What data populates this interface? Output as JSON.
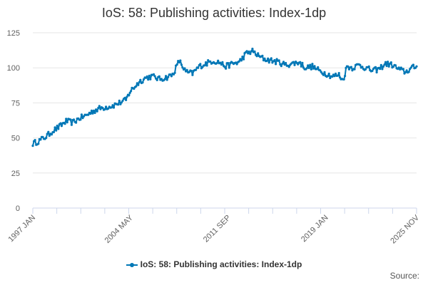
{
  "chart_data": {
    "type": "line",
    "title": "IoS: 58: Publishing activities: Index-1dp",
    "xlabel": "",
    "ylabel": "",
    "ylim": [
      0,
      125
    ],
    "yticks": [
      0,
      25,
      50,
      75,
      100,
      125
    ],
    "x_start": "1997 JAN",
    "x_end": "2025 NOV",
    "x_tick_labels": [
      "1997 JAN",
      "2004 MAY",
      "2011 SEP",
      "2019 JAN",
      "2025 NOV"
    ],
    "grid": true,
    "legend_position": "bottom-center",
    "series": [
      {
        "name": "IoS: 58: Publishing activities: Index-1dp",
        "color": "#0077b6",
        "x": [
          1997.0,
          1997.5,
          1998.0,
          1998.5,
          1999.0,
          1999.5,
          2000.0,
          2000.5,
          2001.0,
          2001.5,
          2002.0,
          2002.5,
          2003.0,
          2003.5,
          2004.0,
          2004.3,
          2004.6,
          2005.0,
          2005.5,
          2006.0,
          2006.5,
          2007.0,
          2007.5,
          2008.0,
          2008.5,
          2009.0,
          2009.5,
          2010.0,
          2010.5,
          2011.0,
          2011.5,
          2012.0,
          2012.5,
          2013.0,
          2013.5,
          2014.0,
          2014.5,
          2015.0,
          2015.5,
          2016.0,
          2016.5,
          2017.0,
          2017.5,
          2018.0,
          2018.5,
          2019.0,
          2019.5,
          2020.0,
          2020.3,
          2020.6,
          2021.0,
          2021.5,
          2022.0,
          2022.5,
          2023.0,
          2023.5,
          2024.0,
          2024.5,
          2025.0,
          2025.5,
          2025.83
        ],
        "values": [
          46,
          48,
          51,
          55,
          58,
          62,
          61,
          64,
          66,
          69,
          71,
          72,
          73,
          75,
          77,
          83,
          86,
          90,
          93,
          94,
          92,
          93,
          95,
          105,
          97,
          96,
          101,
          103,
          105,
          104,
          101,
          103,
          104,
          110,
          112,
          108,
          106,
          105,
          104,
          102,
          103,
          104,
          100,
          101,
          98,
          96,
          94,
          95,
          91,
          101,
          100,
          102,
          100,
          98,
          99,
          103,
          102,
          99,
          97,
          100,
          101
        ]
      }
    ]
  },
  "legend": {
    "label": "IoS: 58: Publishing activities: Index-1dp"
  },
  "footer": {
    "source_label": "Source:"
  }
}
